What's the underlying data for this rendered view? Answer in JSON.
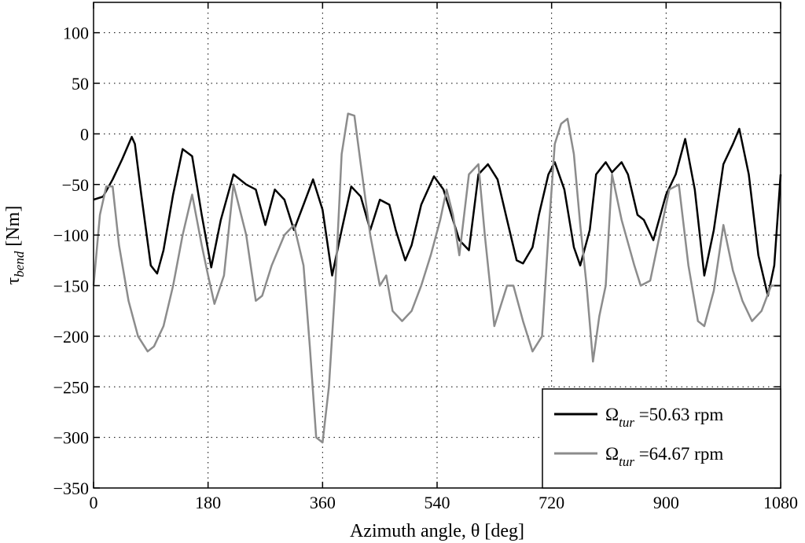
{
  "chart_data": {
    "type": "line",
    "title": "",
    "xlabel": "Azimuth angle, θ [deg]",
    "ylabel": {
      "main": "τ",
      "sub": "bend",
      "unit": " [Nm]"
    },
    "xlim": [
      0,
      1080
    ],
    "ylim": [
      -350,
      130
    ],
    "xticks": [
      0,
      180,
      360,
      540,
      720,
      900,
      1080
    ],
    "yticks": [
      100,
      50,
      0,
      -50,
      -100,
      -150,
      -200,
      -250,
      -300,
      -350
    ],
    "grid": true,
    "grid_style": "dotted",
    "legend_position": "bottom-right",
    "series": [
      {
        "name": "Ω tur =50.63 rpm",
        "legend": {
          "symbol": "Ω",
          "sub": "tur",
          "text": " =50.63 rpm"
        },
        "color": "#000000",
        "x": [
          0,
          15,
          30,
          45,
          60,
          65,
          75,
          90,
          100,
          110,
          125,
          140,
          155,
          170,
          185,
          200,
          220,
          240,
          255,
          270,
          285,
          300,
          315,
          330,
          345,
          360,
          375,
          390,
          405,
          420,
          435,
          450,
          465,
          475,
          490,
          500,
          515,
          535,
          550,
          565,
          575,
          590,
          605,
          620,
          635,
          650,
          665,
          675,
          690,
          700,
          715,
          725,
          740,
          755,
          765,
          780,
          790,
          805,
          815,
          830,
          840,
          855,
          865,
          880,
          900,
          915,
          930,
          945,
          960,
          975,
          990,
          1005,
          1015,
          1030,
          1045,
          1060,
          1070,
          1080
        ],
        "y": [
          -65,
          -62,
          -45,
          -25,
          -3,
          -10,
          -60,
          -130,
          -138,
          -115,
          -60,
          -15,
          -22,
          -80,
          -132,
          -85,
          -40,
          -50,
          -55,
          -90,
          -55,
          -65,
          -95,
          -70,
          -45,
          -75,
          -140,
          -95,
          -52,
          -62,
          -95,
          -65,
          -70,
          -95,
          -125,
          -110,
          -70,
          -42,
          -55,
          -85,
          -105,
          -115,
          -40,
          -30,
          -45,
          -85,
          -125,
          -128,
          -112,
          -80,
          -40,
          -28,
          -55,
          -112,
          -130,
          -95,
          -40,
          -28,
          -38,
          -28,
          -40,
          -80,
          -85,
          -105,
          -60,
          -40,
          -5,
          -55,
          -140,
          -95,
          -30,
          -10,
          5,
          -40,
          -120,
          -160,
          -130,
          -40
        ]
      },
      {
        "name": "Ω tur =64.67 rpm",
        "legend": {
          "symbol": "Ω",
          "sub": "tur",
          "text": " =64.67 rpm"
        },
        "color": "#8c8c8c",
        "x": [
          0,
          10,
          20,
          30,
          40,
          55,
          70,
          85,
          95,
          110,
          125,
          140,
          155,
          170,
          180,
          190,
          205,
          220,
          240,
          255,
          265,
          280,
          300,
          315,
          330,
          340,
          350,
          360,
          370,
          380,
          390,
          400,
          410,
          420,
          435,
          450,
          460,
          470,
          485,
          500,
          515,
          530,
          545,
          555,
          565,
          575,
          590,
          605,
          615,
          630,
          640,
          650,
          660,
          675,
          690,
          705,
          715,
          725,
          735,
          745,
          755,
          765,
          775,
          785,
          795,
          805,
          815,
          830,
          850,
          860,
          875,
          890,
          905,
          920,
          935,
          950,
          960,
          975,
          990,
          1005,
          1020,
          1035,
          1050,
          1065,
          1080
        ],
        "y": [
          -150,
          -80,
          -52,
          -52,
          -110,
          -165,
          -200,
          -215,
          -210,
          -190,
          -150,
          -100,
          -60,
          -110,
          -140,
          -168,
          -140,
          -50,
          -100,
          -165,
          -160,
          -130,
          -100,
          -90,
          -130,
          -210,
          -300,
          -305,
          -250,
          -150,
          -20,
          20,
          18,
          -30,
          -100,
          -150,
          -140,
          -175,
          -185,
          -175,
          -150,
          -120,
          -85,
          -55,
          -80,
          -120,
          -40,
          -30,
          -100,
          -190,
          -170,
          -150,
          -150,
          -185,
          -215,
          -200,
          -100,
          -10,
          10,
          15,
          -20,
          -90,
          -150,
          -225,
          -180,
          -150,
          -40,
          -85,
          -130,
          -150,
          -145,
          -100,
          -55,
          -50,
          -130,
          -185,
          -190,
          -155,
          -90,
          -135,
          -165,
          -185,
          -175,
          -150,
          -150
        ]
      }
    ]
  }
}
